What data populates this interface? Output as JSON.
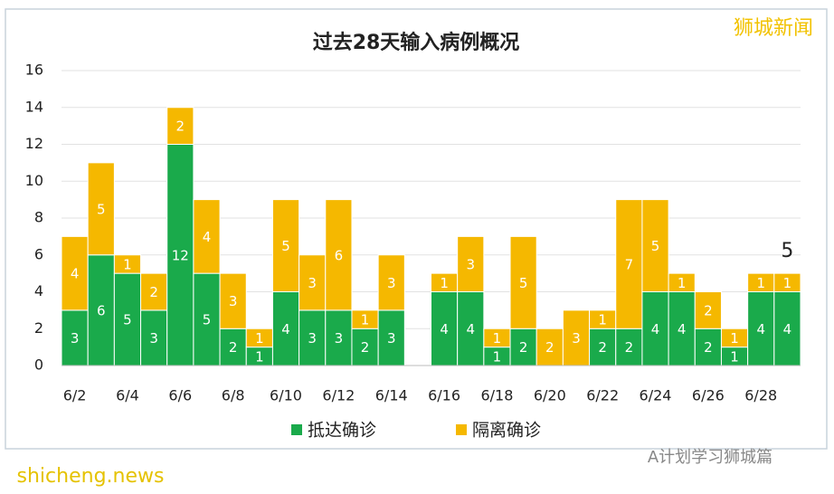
{
  "chart_data": {
    "type": "stacked_bar",
    "title": "过去28天输入病例概况",
    "categories": [
      "6/2",
      null,
      "6/4",
      null,
      "6/6",
      null,
      "6/8",
      null,
      "6/10",
      null,
      "6/12",
      null,
      "6/14",
      null,
      "6/16",
      null,
      "6/18",
      null,
      "6/20",
      null,
      "6/22",
      null,
      "6/24",
      null,
      "6/26",
      null,
      "6/28",
      null
    ],
    "series": [
      {
        "name": "抵达确诊",
        "color": "#1aaa4b",
        "values": [
          3,
          6,
          5,
          3,
          12,
          5,
          2,
          1,
          4,
          3,
          3,
          2,
          3,
          0,
          4,
          4,
          1,
          2,
          0,
          0,
          2,
          2,
          4,
          4,
          2,
          1,
          4,
          4
        ]
      },
      {
        "name": "隔离确诊",
        "color": "#f5b800",
        "values": [
          4,
          5,
          1,
          2,
          2,
          4,
          3,
          1,
          5,
          3,
          6,
          1,
          3,
          0,
          1,
          3,
          1,
          5,
          2,
          3,
          1,
          7,
          5,
          1,
          2,
          1,
          1,
          1
        ]
      }
    ],
    "ylim": [
      0,
      16
    ],
    "yticks": [
      0,
      2,
      4,
      6,
      8,
      10,
      12,
      14,
      16
    ],
    "grid": true,
    "legend": "bottom",
    "annotation": "5",
    "watermarks": [
      "狮城新闻",
      "A计划学习狮城篇",
      "shicheng.news"
    ]
  }
}
